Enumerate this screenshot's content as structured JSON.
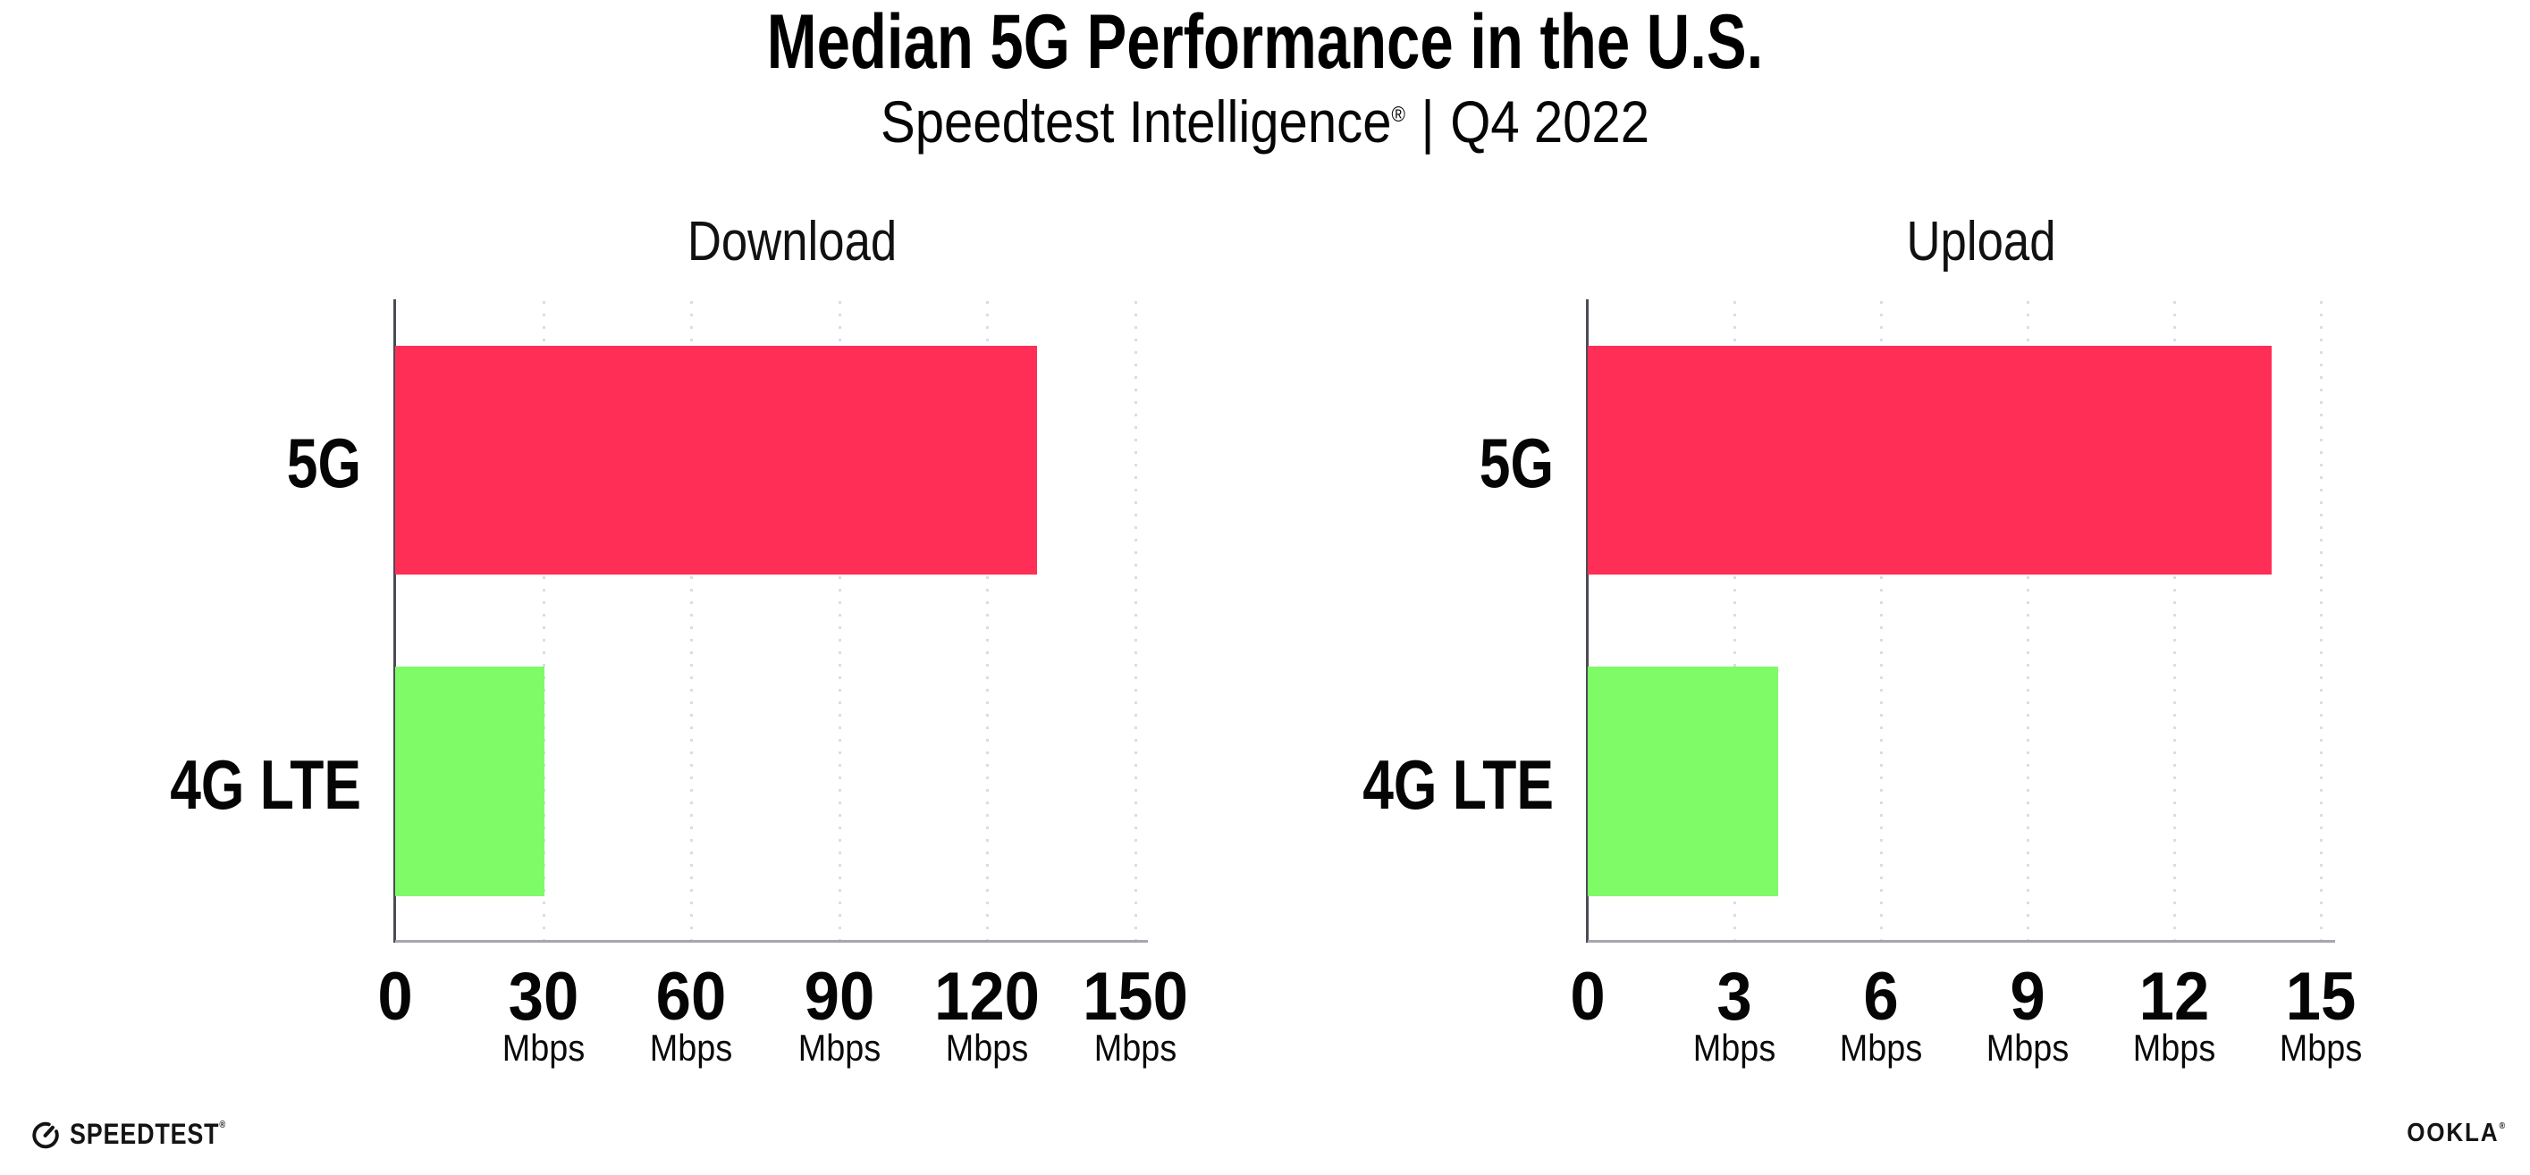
{
  "header": {
    "title": "Median 5G Performance in the U.S.",
    "subtitle_product": "Speedtest Intelligence",
    "subtitle_reg": "®",
    "subtitle_separator": "|",
    "subtitle_period": "Q4 2022"
  },
  "chart_data": [
    {
      "type": "bar",
      "title": "Download",
      "orientation": "horizontal",
      "categories": [
        "5G",
        "4G LTE"
      ],
      "values": [
        130,
        30.3
      ],
      "unit": "Mbps",
      "xlim": [
        0,
        150
      ],
      "ticks": [
        0,
        30,
        60,
        90,
        120,
        150
      ],
      "bar_colors": [
        "#FF2E56",
        "#7EFB66"
      ],
      "grid": "dotted-vertical",
      "legend": "none"
    },
    {
      "type": "bar",
      "title": "Upload",
      "orientation": "horizontal",
      "categories": [
        "5G",
        "4G LTE"
      ],
      "values": [
        14,
        3.9
      ],
      "unit": "Mbps",
      "xlim": [
        0,
        15
      ],
      "ticks": [
        0,
        3,
        6,
        9,
        12,
        15
      ],
      "bar_colors": [
        "#FF2E56",
        "#7EFB66"
      ],
      "grid": "dotted-vertical",
      "legend": "none"
    }
  ],
  "footer": {
    "speedtest_wordmark": "SPEEDTEST",
    "speedtest_reg": "®",
    "ookla_wordmark": "OOKLA",
    "ookla_reg": "®"
  },
  "colors": {
    "bar_5g": "#FF2E56",
    "bar_4g": "#7EFB66",
    "axis_line": "#A6A6AE",
    "y_spine": "#4B4B55",
    "gridline": "#DCDCE8",
    "text": "#0A0A0A",
    "background": "#FFFFFF"
  }
}
